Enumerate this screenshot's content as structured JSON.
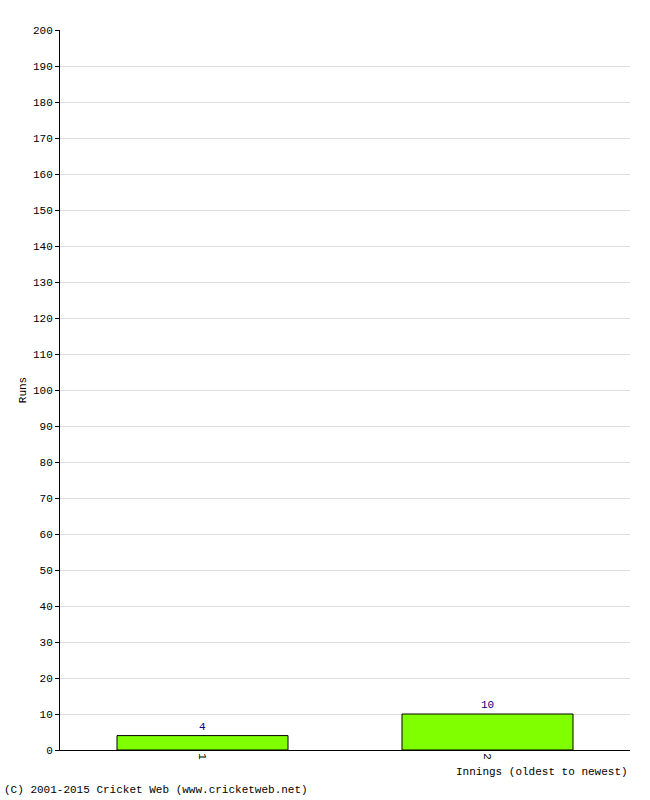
{
  "chart_data": {
    "type": "bar",
    "x_label": "Innings (oldest to newest)",
    "y_label": "Runs",
    "annotations": [
      "(C) 2001-2015 Cricket Web (www.cricketweb.net)"
    ],
    "categories": [
      "1",
      "2"
    ],
    "values": [
      4,
      10
    ],
    "color": "#80ff00",
    "data_labels": true,
    "ylim": [
      0,
      200
    ],
    "yticks": [
      0,
      10,
      20,
      30,
      40,
      50,
      60,
      70,
      80,
      90,
      100,
      110,
      120,
      130,
      140,
      150,
      160,
      170,
      180,
      190,
      200
    ],
    "grid": true
  }
}
